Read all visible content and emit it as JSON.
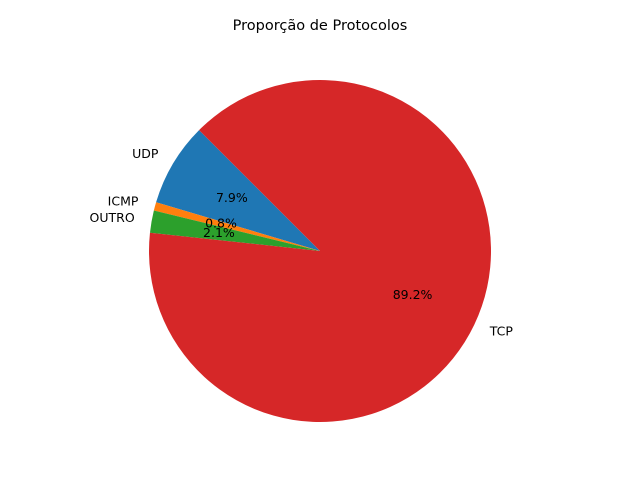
{
  "chart_data": {
    "type": "pie",
    "title": "Proporção de Protocolos",
    "labels": [
      "UDP",
      "ICMP",
      "OUTRO",
      "TCP"
    ],
    "values": [
      7.9,
      0.8,
      2.1,
      89.2
    ],
    "percent_labels": [
      "7.9%",
      "0.8%",
      "2.1%",
      "89.2%"
    ],
    "colors": [
      "#1f77b4",
      "#ff7f0e",
      "#2ca02c",
      "#d62728"
    ],
    "start_angle_deg": 135,
    "direction": "counterclockwise",
    "legend": "none"
  }
}
